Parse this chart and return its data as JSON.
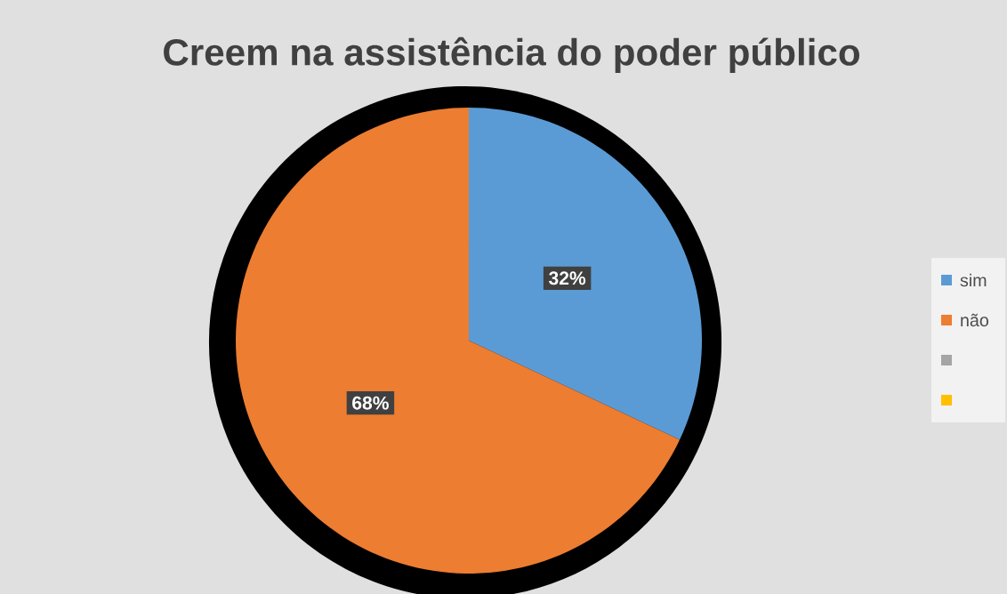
{
  "chart_data": {
    "type": "pie",
    "title": "Creem na assistência do poder público",
    "categories": [
      "sim",
      "não",
      null,
      null
    ],
    "values": [
      32,
      68,
      0,
      0
    ],
    "colors": [
      "#5b9bd5",
      "#ed7d31",
      "#a5a5a5",
      "#ffc000"
    ],
    "value_labels": [
      "32%",
      "68%",
      null,
      null
    ],
    "legend": "right"
  }
}
